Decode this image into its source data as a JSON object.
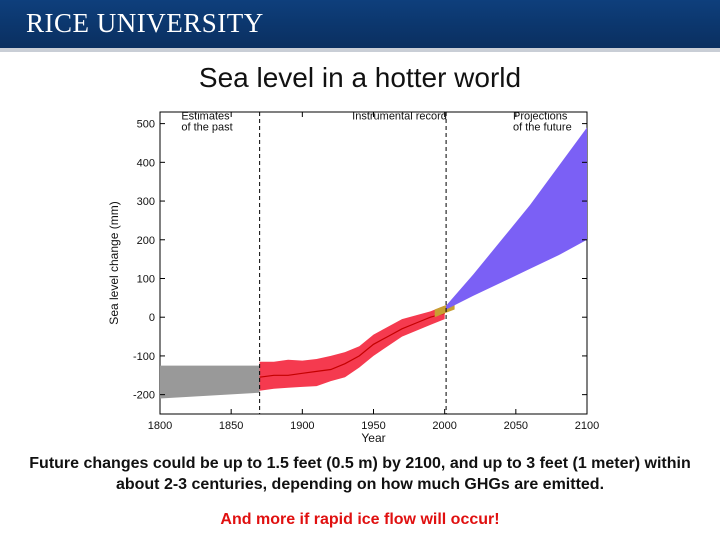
{
  "header": {
    "brand": "RICE UNIVERSITY"
  },
  "slide": {
    "title": "Sea level in a hotter world",
    "caption": "Future changes could be up to 1.5 feet (0.5 m) by 2100, and up to 3 feet (1 meter) within about 2-3 centuries, depending on how much GHGs are emitted.",
    "note": "And more if  rapid ice flow will occur!"
  },
  "colors": {
    "past": "#999999",
    "instrumental": "#f53a4f",
    "instrumental_line": "#c40000",
    "satellite": "#c8a032",
    "projection": "#7b60f5"
  },
  "chart_data": {
    "type": "area",
    "xlabel": "Year",
    "ylabel": "Sea level change (mm)",
    "xlim": [
      1800,
      2100
    ],
    "ylim": [
      -250,
      530
    ],
    "xticks": [
      1800,
      1850,
      1900,
      1950,
      2000,
      2050,
      2100
    ],
    "yticks": [
      -200,
      -100,
      0,
      100,
      200,
      300,
      400,
      500
    ],
    "dividers": [
      1870,
      2001
    ],
    "annotations": [
      {
        "text": "Estimates\nof the past",
        "x": 1815,
        "y": 495
      },
      {
        "text": "Instrumental record",
        "x": 1935,
        "y": 495
      },
      {
        "text": "Projections\nof the future",
        "x": 2048,
        "y": 495
      }
    ],
    "series": [
      {
        "kind": "band",
        "x": [
          1800,
          1870
        ],
        "upper": [
          -125,
          -125
        ],
        "lower": [
          -210,
          -195
        ]
      },
      {
        "kind": "band",
        "x": [
          1870,
          1880,
          1890,
          1900,
          1910,
          1920,
          1930,
          1940,
          1950,
          1960,
          1970,
          1980,
          1990,
          2000
        ],
        "upper": [
          -115,
          -115,
          -110,
          -112,
          -108,
          -100,
          -90,
          -75,
          -45,
          -25,
          -5,
          5,
          15,
          30
        ],
        "lower": [
          -190,
          -185,
          -182,
          -180,
          -178,
          -165,
          -155,
          -130,
          -100,
          -75,
          -50,
          -35,
          -20,
          -5
        ]
      },
      {
        "kind": "line",
        "x": [
          1870,
          1880,
          1890,
          1900,
          1910,
          1920,
          1930,
          1940,
          1950,
          1960,
          1970,
          1980,
          1990,
          2000
        ],
        "y": [
          -155,
          -150,
          -150,
          -145,
          -140,
          -135,
          -120,
          -100,
          -70,
          -50,
          -30,
          -15,
          0,
          10
        ]
      },
      {
        "kind": "band",
        "x": [
          1993,
          2000,
          2007
        ],
        "upper": [
          20,
          30,
          40
        ],
        "lower": [
          0,
          10,
          20
        ]
      },
      {
        "kind": "band",
        "x": [
          2001,
          2020,
          2040,
          2060,
          2080,
          2100
        ],
        "upper": [
          30,
          110,
          200,
          290,
          390,
          490
        ],
        "lower": [
          20,
          55,
          90,
          125,
          160,
          200
        ]
      }
    ]
  }
}
